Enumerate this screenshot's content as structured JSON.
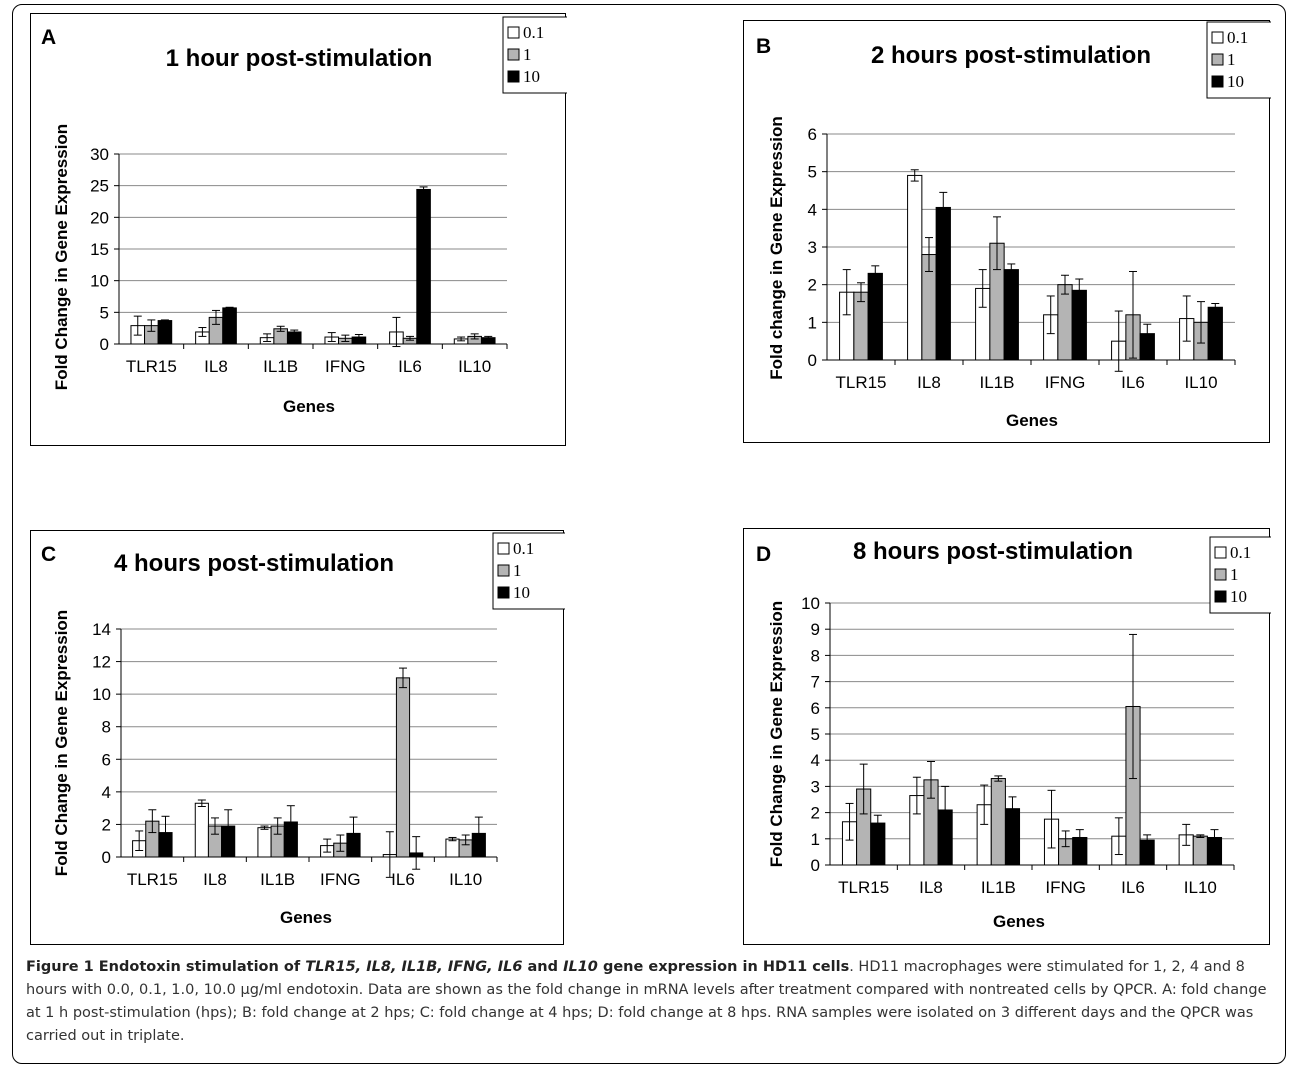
{
  "legend": [
    "0.1",
    "1",
    "10"
  ],
  "series_colors": [
    "#ffffff",
    "#b4b4b4",
    "#000000"
  ],
  "chart_data": [
    {
      "type": "bar",
      "letter": "A",
      "title": "1 hour post-stimulation",
      "xlabel": "Genes",
      "ylabel": "Fold Change in Gene Expression",
      "categories": [
        "TLR15",
        "IL8",
        "IL1B",
        "IFNG",
        "IL6",
        "IL10"
      ],
      "ylim": [
        0,
        30
      ],
      "yticks": [
        "0",
        "5",
        "10",
        "15",
        "20",
        "25",
        "30"
      ],
      "grid": true,
      "legend_position": "top-right",
      "series": [
        {
          "name": "0.1",
          "values": [
            2.9,
            1.9,
            1.0,
            1.1,
            1.9,
            0.8
          ],
          "errors": [
            1.5,
            0.7,
            0.6,
            0.7,
            2.3,
            0.3
          ]
        },
        {
          "name": "1",
          "values": [
            2.9,
            4.2,
            2.4,
            0.9,
            0.9,
            1.2
          ],
          "errors": [
            0.9,
            1.1,
            0.4,
            0.5,
            0.3,
            0.4
          ]
        },
        {
          "name": "10",
          "values": [
            3.7,
            5.7,
            1.9,
            1.1,
            24.4,
            1.0
          ],
          "errors": [
            0.1,
            0.1,
            0.3,
            0.4,
            0.4,
            0.2
          ]
        }
      ]
    },
    {
      "type": "bar",
      "letter": "B",
      "title": "2 hours post-stimulation",
      "xlabel": "Genes",
      "ylabel": "Fold change in Gene Expression",
      "categories": [
        "TLR15",
        "IL8",
        "IL1B",
        "IFNG",
        "IL6",
        "IL10"
      ],
      "ylim": [
        0,
        6
      ],
      "yticks": [
        "0",
        "1",
        "2",
        "3",
        "4",
        "5",
        "6"
      ],
      "grid": true,
      "legend_position": "top-right",
      "series": [
        {
          "name": "0.1",
          "values": [
            1.8,
            4.9,
            1.9,
            1.2,
            0.5,
            1.1
          ],
          "errors": [
            0.6,
            0.15,
            0.5,
            0.5,
            0.8,
            0.6
          ]
        },
        {
          "name": "1",
          "values": [
            1.8,
            2.8,
            3.1,
            2.0,
            1.2,
            1.0
          ],
          "errors": [
            0.25,
            0.45,
            0.7,
            0.25,
            1.15,
            0.55
          ]
        },
        {
          "name": "10",
          "values": [
            2.3,
            4.05,
            2.4,
            1.85,
            0.7,
            1.4
          ],
          "errors": [
            0.2,
            0.4,
            0.15,
            0.3,
            0.25,
            0.1
          ]
        }
      ]
    },
    {
      "type": "bar",
      "letter": "C",
      "title": "4 hours post-stimulation",
      "xlabel": "Genes",
      "ylabel": "Fold Change in Gene Expression",
      "categories": [
        "TLR15",
        "IL8",
        "IL1B",
        "IFNG",
        "IL6",
        "IL10"
      ],
      "ylim": [
        0,
        14
      ],
      "yticks": [
        "0",
        "2",
        "4",
        "6",
        "8",
        "10",
        "12",
        "14"
      ],
      "grid": true,
      "legend_position": "top-right",
      "series": [
        {
          "name": "0.1",
          "values": [
            1.0,
            3.3,
            1.8,
            0.7,
            0.15,
            1.1
          ],
          "errors": [
            0.6,
            0.2,
            0.1,
            0.4,
            1.4,
            0.1
          ]
        },
        {
          "name": "1",
          "values": [
            2.2,
            1.9,
            1.9,
            0.85,
            11.0,
            1.05
          ],
          "errors": [
            0.7,
            0.5,
            0.5,
            0.5,
            0.6,
            0.3
          ]
        },
        {
          "name": "10",
          "values": [
            1.5,
            1.9,
            2.15,
            1.45,
            0.25,
            1.45
          ],
          "errors": [
            1.0,
            1.0,
            1.0,
            1.0,
            1.0,
            1.0
          ]
        }
      ]
    },
    {
      "type": "bar",
      "letter": "D",
      "title": "8 hours post-stimulation",
      "xlabel": "Genes",
      "ylabel": "Fold Change in Gene Expression",
      "categories": [
        "TLR15",
        "IL8",
        "IL1B",
        "IFNG",
        "IL6",
        "IL10"
      ],
      "ylim": [
        0,
        10
      ],
      "yticks": [
        "0",
        "1",
        "2",
        "3",
        "4",
        "5",
        "6",
        "7",
        "8",
        "9",
        "10"
      ],
      "grid": true,
      "legend_position": "top-right",
      "series": [
        {
          "name": "0.1",
          "values": [
            1.65,
            2.65,
            2.3,
            1.75,
            1.1,
            1.15
          ],
          "errors": [
            0.7,
            0.7,
            0.75,
            1.1,
            0.7,
            0.4
          ]
        },
        {
          "name": "1",
          "values": [
            2.9,
            3.25,
            3.3,
            1.0,
            6.05,
            1.1
          ],
          "errors": [
            0.95,
            0.7,
            0.1,
            0.3,
            2.75,
            0.05
          ]
        },
        {
          "name": "10",
          "values": [
            1.6,
            2.1,
            2.15,
            1.05,
            0.95,
            1.05
          ],
          "errors": [
            0.3,
            0.9,
            0.45,
            0.3,
            0.2,
            0.3
          ]
        }
      ]
    }
  ],
  "caption": {
    "label": "Figure 1",
    "title_parts": [
      {
        "text": "Endotoxin stimulation of ",
        "italic": false
      },
      {
        "text": "TLR15, IL8, IL1B, IFNG, IL6",
        "italic": true
      },
      {
        "text": " and ",
        "italic": false
      },
      {
        "text": "IL10",
        "italic": true
      },
      {
        "text": " gene expression in HD11 cells",
        "italic": false
      }
    ],
    "body": ". HD11 macrophages were stimulated for 1, 2, 4 and 8 hours with 0.0, 0.1, 1.0, 10.0 µg/ml endotoxin. Data are shown as the fold change in mRNA levels after treatment compared with nontreated cells by QPCR. A: fold change at 1 h post-stimulation (hps); B: fold change at 2 hps; C: fold change at 4 hps; D: fold change at 8 hps. RNA samples were isolated on 3 different days and the QPCR was carried out in triplate."
  }
}
